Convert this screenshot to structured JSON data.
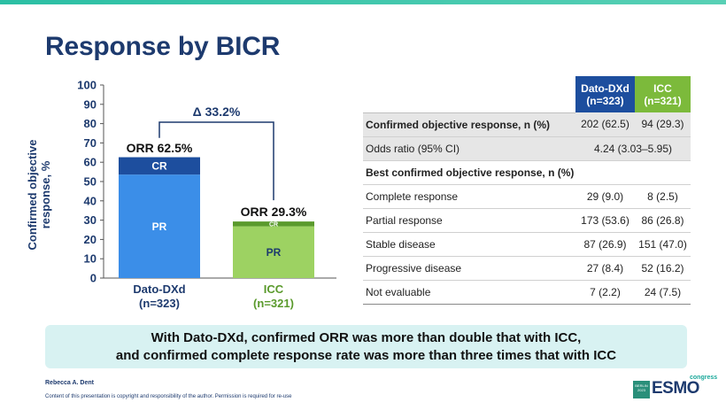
{
  "slide": {
    "title": "Response by BICR",
    "callout_line1": "With Dato-DXd, confirmed ORR was more than double that with ICC,",
    "callout_line2": "and confirmed complete response rate was more than three times that with ICC",
    "presenter": "Rebecca A. Dent",
    "copyright": "Content of this presentation is copyright and responsibility of the author. Permission is required for re-use",
    "logo": {
      "badge": "BERLIN 2023",
      "brand": "ESMO",
      "suffix": "congress"
    }
  },
  "colors": {
    "dato_cr": "#1d4e9e",
    "dato_pr": "#3b8ee8",
    "icc_cr": "#5a9a2c",
    "icc_pr": "#9dd262",
    "title": "#1d3a6e"
  },
  "chart_data": {
    "type": "bar",
    "stacked": true,
    "ylabel": "Confirmed objective response, %",
    "ylim": [
      0,
      100
    ],
    "yticks": [
      0,
      10,
      20,
      30,
      40,
      50,
      60,
      70,
      80,
      90,
      100
    ],
    "categories": [
      "Dato-DXd\n(n=323)",
      "ICC\n(n=321)"
    ],
    "category_names": [
      "Dato-DXd",
      "ICC"
    ],
    "category_ns": [
      "(n=323)",
      "(n=321)"
    ],
    "series": [
      {
        "name": "PR",
        "values": [
          53.6,
          26.8
        ]
      },
      {
        "name": "CR",
        "values": [
          9.0,
          2.5
        ]
      }
    ],
    "totals_labels": [
      "ORR 62.5%",
      "ORR 29.3%"
    ],
    "totals": [
      62.5,
      29.3
    ],
    "delta_label": "Δ 33.2%"
  },
  "table": {
    "col_headers": [
      {
        "line1": "Dato-DXd",
        "line2": "(n=323)"
      },
      {
        "line1": "ICC",
        "line2": "(n=321)"
      }
    ],
    "rows": [
      {
        "label": "Confirmed objective response, n (%)",
        "dato": "202 (62.5)",
        "icc": "94 (29.3)"
      },
      {
        "label": "Odds ratio (95% CI)",
        "merged": "4.24 (3.03–5.95)"
      },
      {
        "label": "Best confirmed objective response, n (%)"
      },
      {
        "label": "Complete response",
        "dato": "29 (9.0)",
        "icc": "8 (2.5)"
      },
      {
        "label": "Partial response",
        "dato": "173 (53.6)",
        "icc": "86 (26.8)"
      },
      {
        "label": "Stable disease",
        "dato": "87 (26.9)",
        "icc": "151 (47.0)"
      },
      {
        "label": "Progressive disease",
        "dato": "27 (8.4)",
        "icc": "52 (16.2)"
      },
      {
        "label": "Not evaluable",
        "dato": "7 (2.2)",
        "icc": "24 (7.5)"
      }
    ]
  }
}
